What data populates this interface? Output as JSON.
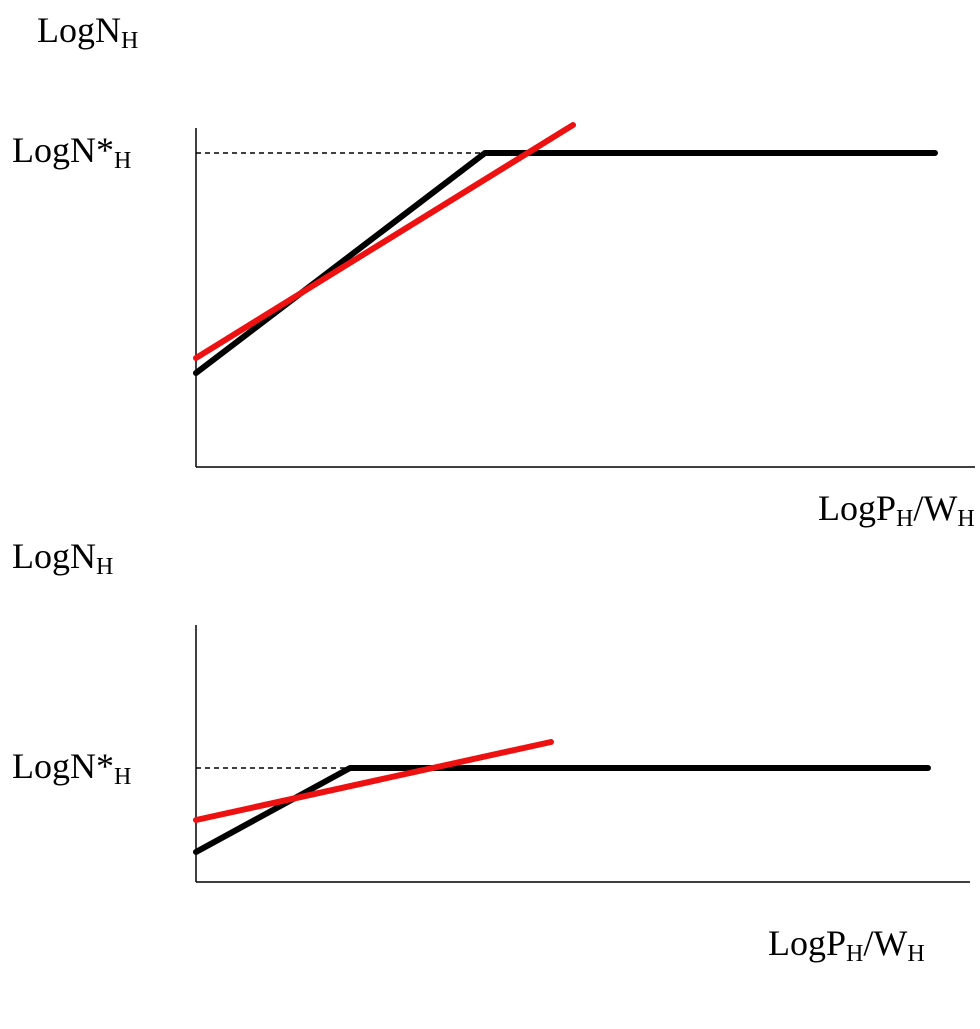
{
  "panels": [
    {
      "y_label": [
        {
          "text": "LogN"
        },
        {
          "text": "H",
          "sub": true
        }
      ],
      "ref_label": [
        {
          "text": "LogN*"
        },
        {
          "text": "H",
          "sub": true
        }
      ],
      "x_label": [
        {
          "text": "LogP"
        },
        {
          "text": "H",
          "sub": true
        },
        {
          "text": "/W"
        },
        {
          "text": "H",
          "sub": true
        }
      ]
    },
    {
      "y_label": [
        {
          "text": "LogN"
        },
        {
          "text": "H",
          "sub": true
        }
      ],
      "ref_label": [
        {
          "text": "LogN*"
        },
        {
          "text": "H",
          "sub": true
        }
      ],
      "x_label": [
        {
          "text": "LogP"
        },
        {
          "text": "H",
          "sub": true
        },
        {
          "text": "/W"
        },
        {
          "text": "H",
          "sub": true
        }
      ]
    }
  ]
}
